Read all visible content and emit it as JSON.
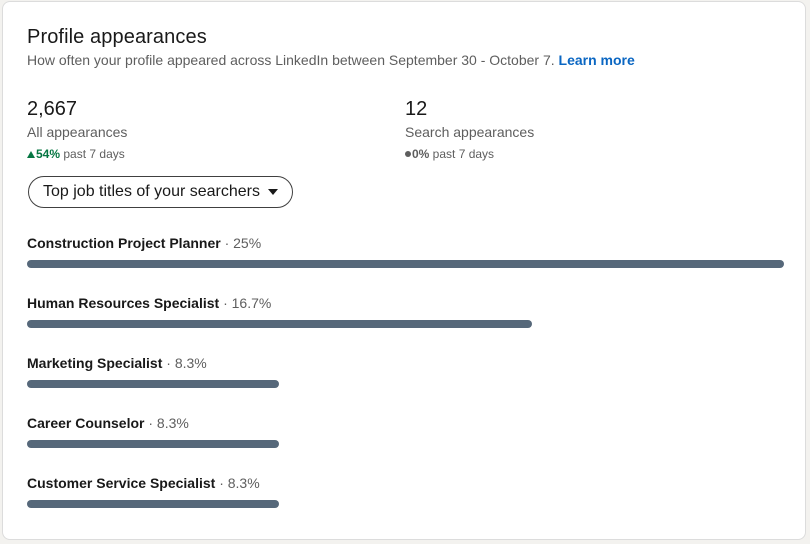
{
  "header": {
    "title": "Profile appearances",
    "subtitle": "How often your profile appeared across LinkedIn between September 30 - October 7.",
    "learn_more": "Learn more"
  },
  "stats": {
    "all": {
      "value": "2,667",
      "label": "All appearances",
      "change": "54%",
      "period": " past 7 days",
      "trend": "up"
    },
    "search": {
      "value": "12",
      "label": "Search appearances",
      "change": "0%",
      "period": " past 7 days",
      "trend": "neutral"
    }
  },
  "dropdown": {
    "label": "Top job titles of your searchers",
    "icon": "caret-down-icon"
  },
  "colors": {
    "bar": "#56687a",
    "positive": "#057642",
    "link": "#0a66c2"
  },
  "job_titles": [
    {
      "name": "Construction Project Planner",
      "percent_text": " · 25%",
      "fraction": 1.0
    },
    {
      "name": "Human Resources Specialist",
      "percent_text": " · 16.7%",
      "fraction": 0.667
    },
    {
      "name": "Marketing Specialist",
      "percent_text": " · 8.3%",
      "fraction": 0.333
    },
    {
      "name": "Career Counselor",
      "percent_text": " · 8.3%",
      "fraction": 0.333
    },
    {
      "name": "Customer Service Specialist",
      "percent_text": " · 8.3%",
      "fraction": 0.333
    }
  ]
}
